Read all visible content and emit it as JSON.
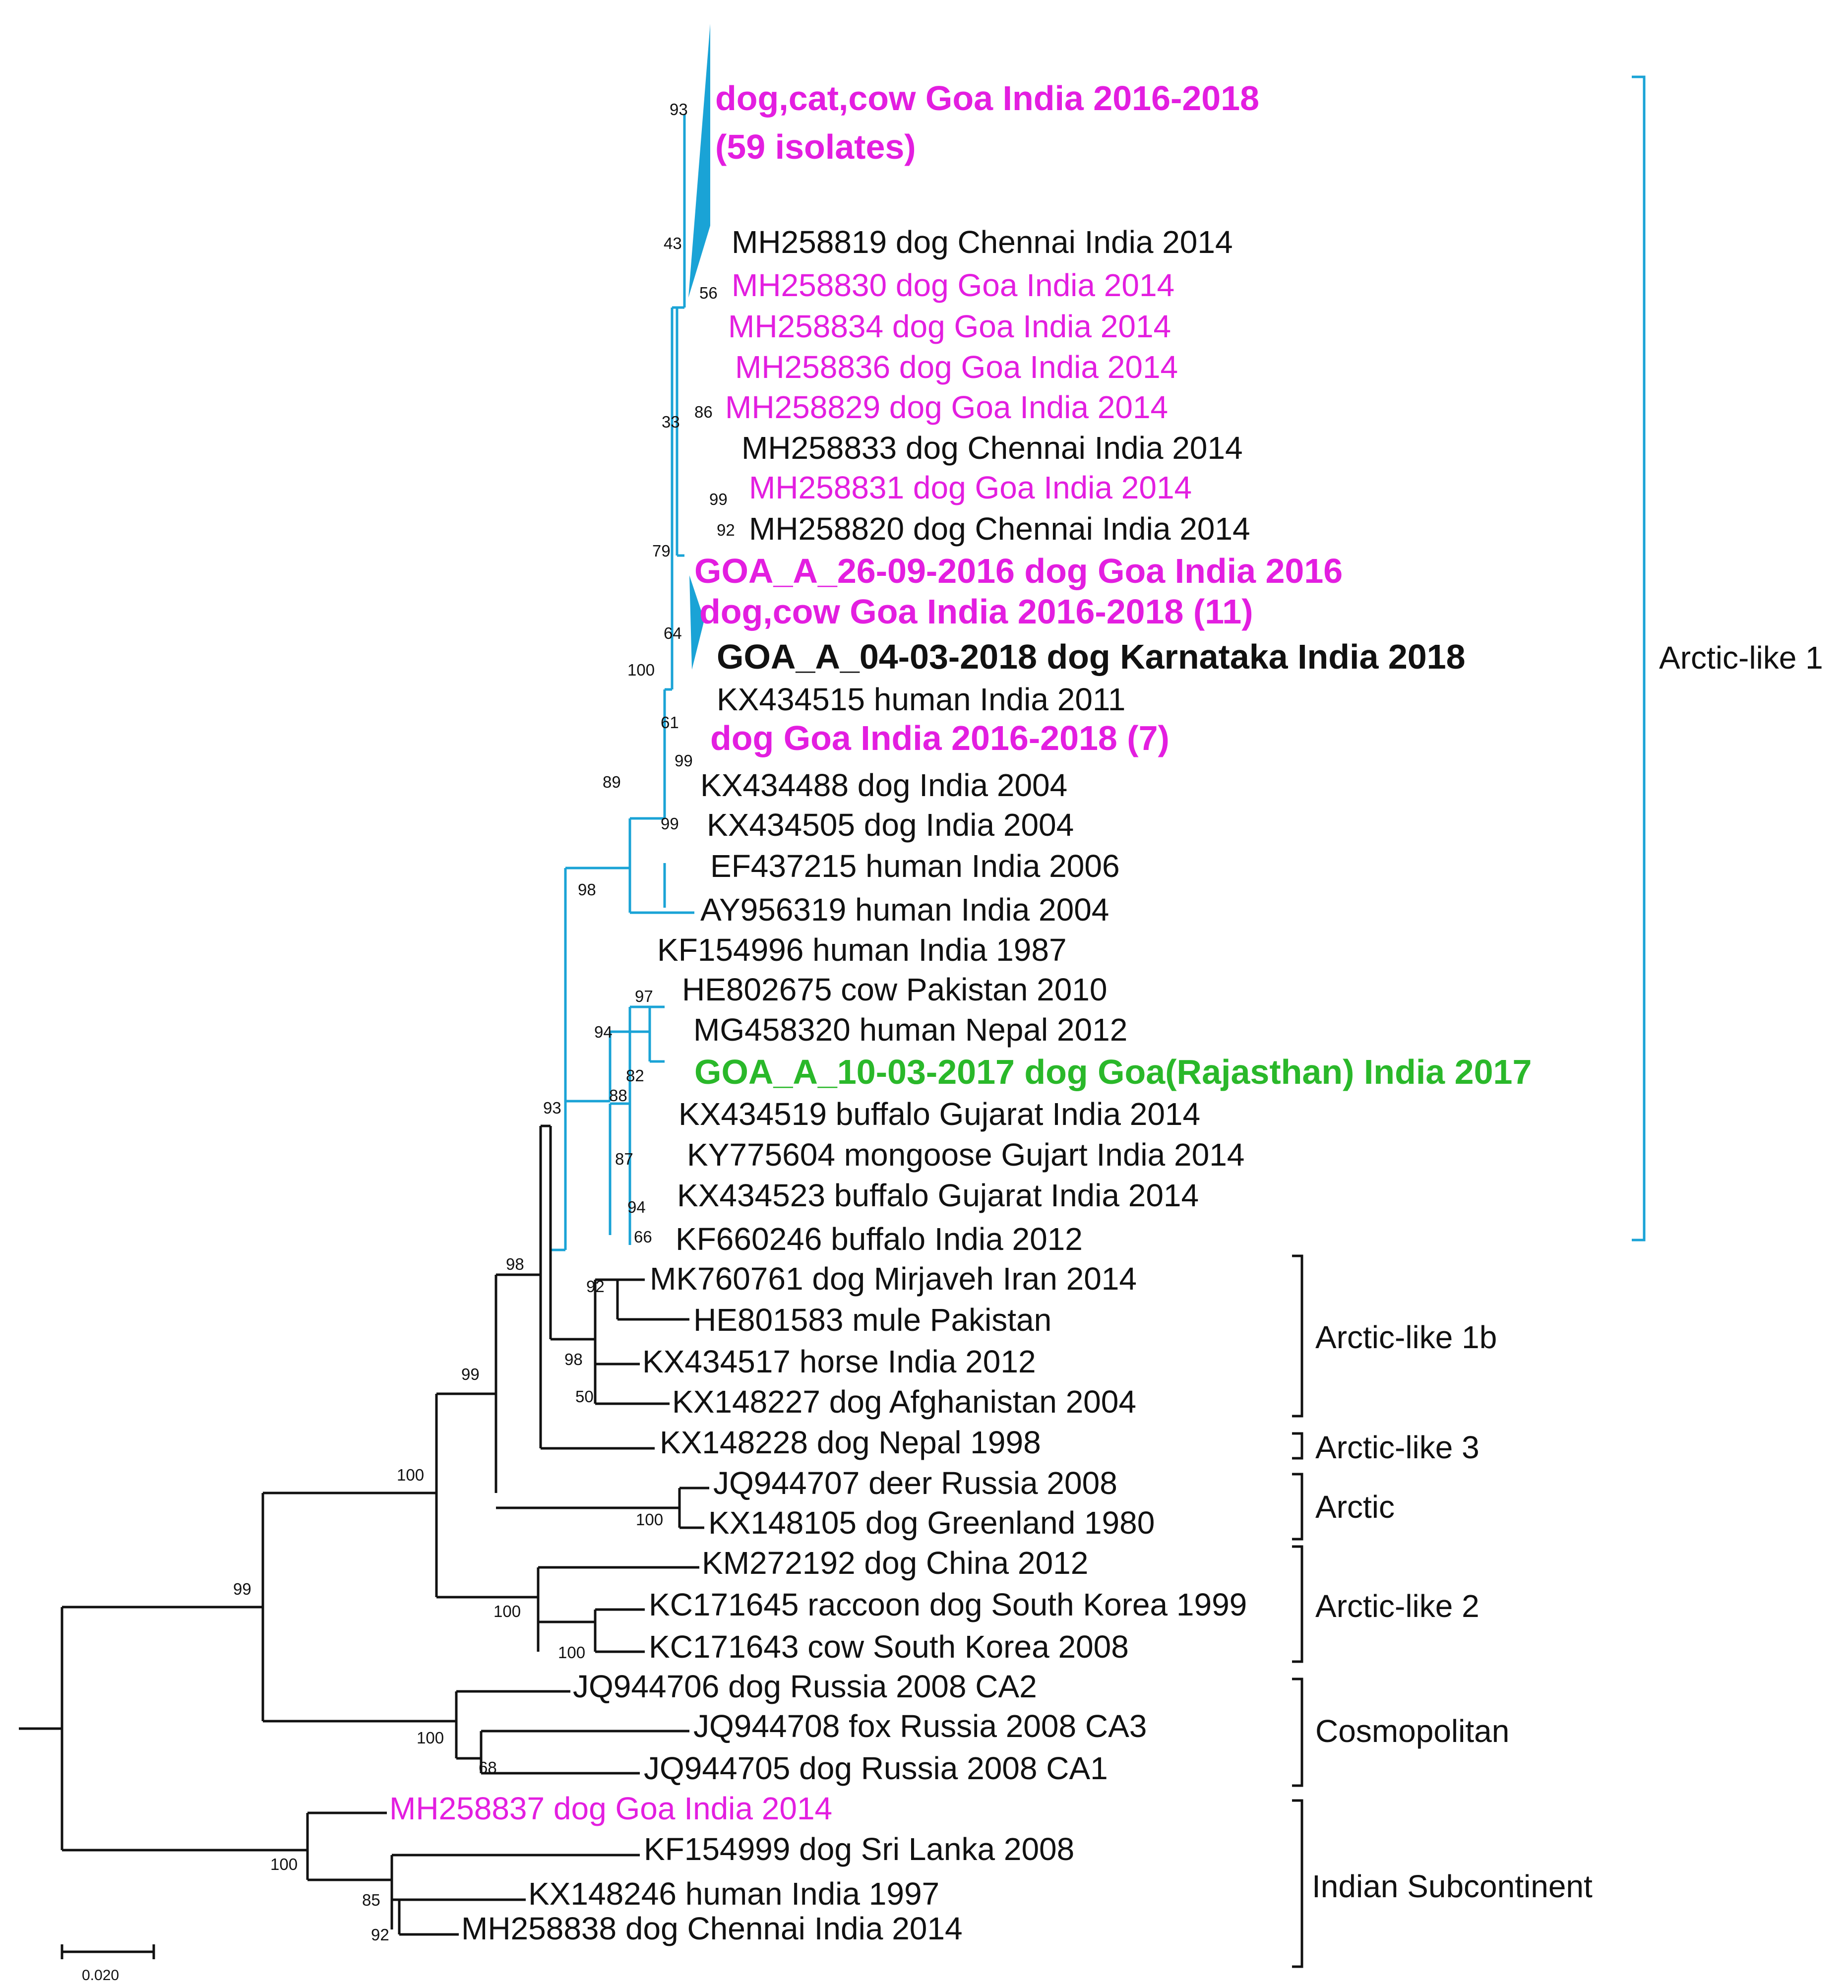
{
  "colors": {
    "black": "#111111",
    "cyan": "#1aa3d6",
    "magenta": "#e31ee0",
    "green": "#2ab82a"
  },
  "leaves": [
    {
      "id": "c59a",
      "text": "dog,cat,cow Goa India 2016-2018",
      "color": "magenta",
      "bold": true
    },
    {
      "id": "c59b",
      "text": "(59 isolates)",
      "color": "magenta",
      "bold": true
    },
    {
      "id": "mh819",
      "text": "MH258819 dog Chennai India 2014",
      "color": "black"
    },
    {
      "id": "mh830",
      "text": "MH258830 dog Goa India 2014",
      "color": "magenta"
    },
    {
      "id": "mh834",
      "text": "MH258834 dog Goa India 2014",
      "color": "magenta"
    },
    {
      "id": "mh836",
      "text": "MH258836 dog Goa India 2014",
      "color": "magenta"
    },
    {
      "id": "mh829",
      "text": "MH258829 dog Goa India 2014",
      "color": "magenta"
    },
    {
      "id": "mh833",
      "text": "MH258833 dog Chennai India 2014",
      "color": "black"
    },
    {
      "id": "mh831",
      "text": "MH258831 dog Goa India 2014",
      "color": "magenta"
    },
    {
      "id": "mh820",
      "text": "MH258820 dog Chennai India 2014",
      "color": "black"
    },
    {
      "id": "goa26",
      "text": "GOA_A_26-09-2016 dog Goa India 2016",
      "color": "magenta",
      "bold": true
    },
    {
      "id": "dc11",
      "text": "dog,cow Goa India 2016-2018 (11)",
      "color": "magenta",
      "bold": true
    },
    {
      "id": "goa04",
      "text": "GOA_A_04-03-2018 dog Karnataka India 2018",
      "color": "black",
      "bold": true
    },
    {
      "id": "kx515",
      "text": "KX434515 human India 2011",
      "color": "black"
    },
    {
      "id": "dg7",
      "text": "dog Goa India 2016-2018 (7)",
      "color": "magenta",
      "bold": true
    },
    {
      "id": "kx488",
      "text": "KX434488 dog India 2004",
      "color": "black"
    },
    {
      "id": "kx505",
      "text": "KX434505 dog India 2004",
      "color": "black"
    },
    {
      "id": "ef215",
      "text": "EF437215 human India 2006",
      "color": "black"
    },
    {
      "id": "ay319",
      "text": "AY956319 human India 2004",
      "color": "black"
    },
    {
      "id": "kf996",
      "text": "KF154996 human India 1987",
      "color": "black"
    },
    {
      "id": "he675",
      "text": "HE802675 cow Pakistan 2010",
      "color": "black"
    },
    {
      "id": "mg320",
      "text": "MG458320 human Nepal 2012",
      "color": "black"
    },
    {
      "id": "goa10",
      "text": "GOA_A_10-03-2017 dog Goa(Rajasthan) India 2017",
      "color": "green",
      "bold": true
    },
    {
      "id": "kx519",
      "text": "KX434519 buffalo Gujarat India 2014",
      "color": "black"
    },
    {
      "id": "ky604",
      "text": "KY775604 mongoose Gujart India 2014",
      "color": "black"
    },
    {
      "id": "kx523",
      "text": "KX434523 buffalo Gujarat India 2014",
      "color": "black"
    },
    {
      "id": "kf246",
      "text": "KF660246 buffalo India 2012",
      "color": "black"
    },
    {
      "id": "mk761",
      "text": "MK760761 dog Mirjaveh Iran 2014",
      "color": "black"
    },
    {
      "id": "he583",
      "text": "HE801583 mule Pakistan",
      "color": "black"
    },
    {
      "id": "kx517",
      "text": "KX434517 horse India 2012",
      "color": "black"
    },
    {
      "id": "kx227",
      "text": "KX148227 dog Afghanistan 2004",
      "color": "black"
    },
    {
      "id": "kx228",
      "text": "KX148228 dog Nepal 1998",
      "color": "black"
    },
    {
      "id": "jq707",
      "text": "JQ944707 deer Russia 2008",
      "color": "black"
    },
    {
      "id": "kx105",
      "text": "KX148105 dog Greenland 1980",
      "color": "black"
    },
    {
      "id": "km192",
      "text": "KM272192 dog China 2012",
      "color": "black"
    },
    {
      "id": "kc645",
      "text": "KC171645 raccoon dog South Korea 1999",
      "color": "black"
    },
    {
      "id": "kc643",
      "text": "KC171643 cow South Korea 2008",
      "color": "black"
    },
    {
      "id": "jq706",
      "text": "JQ944706 dog Russia 2008 CA2",
      "color": "black"
    },
    {
      "id": "jq708",
      "text": "JQ944708 fox Russia 2008 CA3",
      "color": "black"
    },
    {
      "id": "jq705",
      "text": "JQ944705 dog Russia 2008 CA1",
      "color": "black"
    },
    {
      "id": "mh837",
      "text": "MH258837 dog Goa India 2014",
      "color": "magenta"
    },
    {
      "id": "kf999",
      "text": "KF154999 dog Sri Lanka 2008",
      "color": "black"
    },
    {
      "id": "kx246",
      "text": "KX148246 human India 1997",
      "color": "black"
    },
    {
      "id": "mh838",
      "text": "MH258838 dog Chennai India 2014",
      "color": "black"
    }
  ],
  "bootstrap": [
    {
      "id": "b_c59",
      "value": "93"
    },
    {
      "id": "b_43",
      "value": "43"
    },
    {
      "id": "b_56",
      "value": "56"
    },
    {
      "id": "b_86",
      "value": "86"
    },
    {
      "id": "b_33",
      "value": "33"
    },
    {
      "id": "b_99a",
      "value": "99"
    },
    {
      "id": "b_92a",
      "value": "92"
    },
    {
      "id": "b_79",
      "value": "79"
    },
    {
      "id": "b_64",
      "value": "64"
    },
    {
      "id": "b_100a",
      "value": "100"
    },
    {
      "id": "b_61",
      "value": "61"
    },
    {
      "id": "b_99b",
      "value": "99"
    },
    {
      "id": "b_89",
      "value": "89"
    },
    {
      "id": "b_99c",
      "value": "99"
    },
    {
      "id": "b_98a",
      "value": "98"
    },
    {
      "id": "b_97",
      "value": "97"
    },
    {
      "id": "b_94a",
      "value": "94"
    },
    {
      "id": "b_82",
      "value": "82"
    },
    {
      "id": "b_88",
      "value": "88"
    },
    {
      "id": "b_87",
      "value": "87"
    },
    {
      "id": "b_94b",
      "value": "94"
    },
    {
      "id": "b_66",
      "value": "66"
    },
    {
      "id": "b_93b",
      "value": "93"
    },
    {
      "id": "b_92b",
      "value": "92"
    },
    {
      "id": "b_98b",
      "value": "98"
    },
    {
      "id": "b_98c",
      "value": "98"
    },
    {
      "id": "b_50",
      "value": "50"
    },
    {
      "id": "b_99d",
      "value": "99"
    },
    {
      "id": "b_100b",
      "value": "100"
    },
    {
      "id": "b_100c",
      "value": "100"
    },
    {
      "id": "b_99e",
      "value": "99"
    },
    {
      "id": "b_100d",
      "value": "100"
    },
    {
      "id": "b_100e",
      "value": "100"
    },
    {
      "id": "b_100f",
      "value": "100"
    },
    {
      "id": "b_68",
      "value": "68"
    },
    {
      "id": "b_100g",
      "value": "100"
    },
    {
      "id": "b_85",
      "value": "85"
    },
    {
      "id": "b_92c",
      "value": "92"
    }
  ],
  "clades": [
    {
      "id": "arctic1",
      "label": "Arctic-like 1",
      "color": "cyan"
    },
    {
      "id": "arctic1b",
      "label": "Arctic-like 1b",
      "color": "black"
    },
    {
      "id": "arctic3",
      "label": "Arctic-like 3",
      "color": "black"
    },
    {
      "id": "arctic",
      "label": "Arctic",
      "color": "black"
    },
    {
      "id": "arctic2",
      "label": "Arctic-like 2",
      "color": "black"
    },
    {
      "id": "cosmo",
      "label": "Cosmopolitan",
      "color": "black"
    },
    {
      "id": "indian",
      "label": "Indian Subcontinent",
      "color": "black"
    }
  ],
  "scale_bar": {
    "value": "0.020"
  }
}
